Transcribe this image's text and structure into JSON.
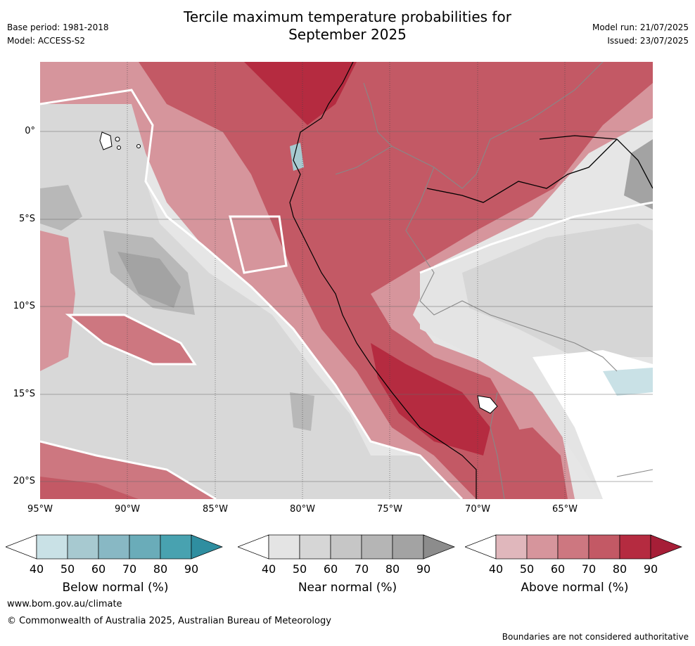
{
  "title_line1": "Tercile maximum temperature probabilities for",
  "title_line2": "September 2025",
  "base_period": "Base period: 1981-2018",
  "model": "Model: ACCESS-S2",
  "model_run": "Model run: 21/07/2025",
  "issued": "Issued: 23/07/2025",
  "lat_labels": [
    "0°",
    "5°S",
    "10°S",
    "15°S",
    "20°S"
  ],
  "lon_labels": [
    "95°W",
    "90°W",
    "85°W",
    "80°W",
    "75°W",
    "70°W",
    "65°W"
  ],
  "colorbars": [
    {
      "label": "Below normal (%)",
      "ticks": [
        "40",
        "50",
        "60",
        "70",
        "80",
        "90"
      ],
      "colors": [
        "#ffffff",
        "#c9e1e6",
        "#a7c9d0",
        "#88b8c4",
        "#6aacb9",
        "#48a2b0",
        "#2f8ea0"
      ]
    },
    {
      "label": "Near normal (%)",
      "ticks": [
        "40",
        "50",
        "60",
        "70",
        "80",
        "90"
      ],
      "colors": [
        "#ffffff",
        "#e4e4e4",
        "#d6d6d6",
        "#c6c6c6",
        "#b5b5b5",
        "#a3a3a3",
        "#8c8c8c"
      ]
    },
    {
      "label": "Above normal (%)",
      "ticks": [
        "40",
        "50",
        "60",
        "70",
        "80",
        "90"
      ],
      "colors": [
        "#ffffff",
        "#e0b7bc",
        "#d6959c",
        "#cd7780",
        "#c35965",
        "#b52b40",
        "#a61e37"
      ]
    }
  ],
  "website": "www.bom.gov.au/climate",
  "copyright": "© Commonwealth of Australia 2025, Australian Bureau of Meteorology",
  "disclaimer": "Boundaries are not considered authoritative"
}
